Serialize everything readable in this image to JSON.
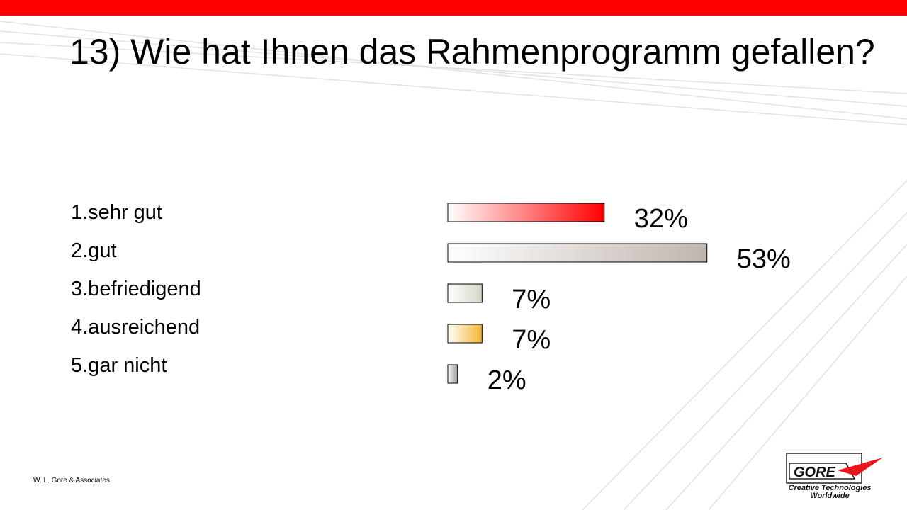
{
  "title": "13) Wie hat Ihnen das Rahmenprogramm gefallen?",
  "options": [
    "1.sehr gut",
    "2.gut",
    "3.befriedigend",
    "4.ausreichend",
    "5.gar nicht"
  ],
  "footer": "W. L. Gore & Associates",
  "logo": {
    "wordmark": "GORE",
    "tagline_line1": "Creative Technologies",
    "tagline_line2": "Worldwide"
  },
  "colors": {
    "accent": "#ff0000"
  },
  "chart_data": {
    "type": "bar",
    "orientation": "horizontal",
    "categories": [
      "1.sehr gut",
      "2.gut",
      "3.befriedigend",
      "4.ausreichend",
      "5.gar nicht"
    ],
    "values": [
      32,
      53,
      7,
      7,
      2
    ],
    "labels": [
      "32%",
      "53%",
      "7%",
      "7%",
      "2%"
    ],
    "colors": [
      "#ff0000",
      "#bfb5ae",
      "#d3d7c7",
      "#f2b533",
      "#999999"
    ]
  }
}
